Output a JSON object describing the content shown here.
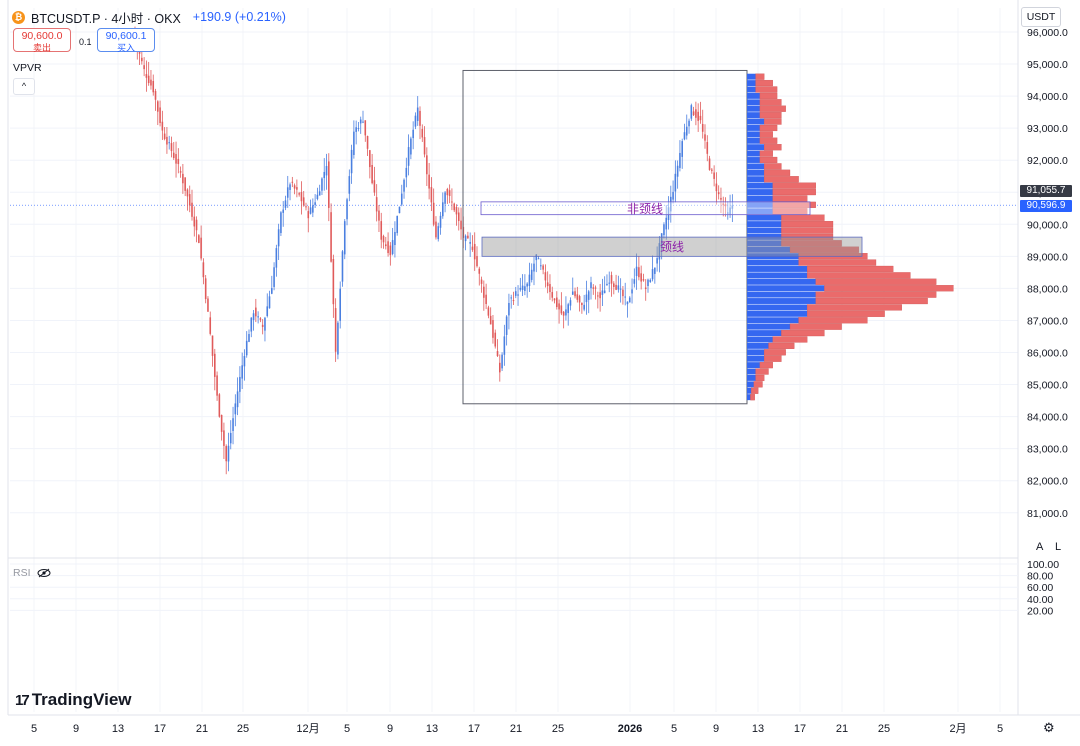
{
  "header": {
    "coin_glyph": "₿",
    "symbol": "BTCUSDT.P · 4小时 · OKX",
    "change": "+190.9 (+0.21%)"
  },
  "quote": {
    "sell_price": "90,600.0",
    "sell_label": "卖出",
    "spread": "0.1",
    "buy_price": "90,600.1",
    "buy_label": "买入"
  },
  "indicator": {
    "name": "VPVR",
    "collapse_glyph": "^"
  },
  "currency": "USDT",
  "price_tags": {
    "last": "91,055.7",
    "current": "90,596.9"
  },
  "scale_buttons": {
    "auto": "A",
    "log": "L"
  },
  "rsi_pane": {
    "name": "RSI"
  },
  "brand": {
    "mark": "17",
    "name": "TradingView"
  },
  "colors": {
    "up": "#4a7fe0",
    "down": "#e05a5a",
    "vp_up": "#3567f0",
    "vp_down": "#ea6b6b",
    "annotation": "#8e24aa"
  },
  "chart_data": {
    "type": "candlestick",
    "symbol": "BTCUSDT.P",
    "interval": "4小时",
    "exchange": "OKX",
    "y_ticks": [
      "96,000.0",
      "95,000.0",
      "94,000.0",
      "93,000.0",
      "92,000.0",
      "91,000.0",
      "90,000.0",
      "89,000.0",
      "88,000.0",
      "87,000.0",
      "86,000.0",
      "85,000.0",
      "84,000.0",
      "83,000.0",
      "82,000.0",
      "81,000.0"
    ],
    "y_values": [
      96000,
      95000,
      94000,
      93000,
      92000,
      91000,
      90000,
      89000,
      88000,
      87000,
      86000,
      85000,
      84000,
      83000,
      82000,
      81000
    ],
    "x_ticks": [
      "5",
      "9",
      "13",
      "17",
      "21",
      "25",
      "12月",
      "5",
      "9",
      "13",
      "17",
      "21",
      "25",
      "2026",
      "5",
      "9",
      "13",
      "17",
      "21",
      "25",
      "2月",
      "5"
    ],
    "rsi_ticks": [
      "100.00",
      "80.00",
      "60.00",
      "40.00",
      "20.00"
    ],
    "rsi_values": [
      100,
      80,
      60,
      40,
      20
    ],
    "path_keypoints": [
      [
        0,
        95800
      ],
      [
        4,
        94800
      ],
      [
        8,
        94200
      ],
      [
        12,
        92900
      ],
      [
        16,
        92300
      ],
      [
        20,
        91600
      ],
      [
        24,
        90600
      ],
      [
        28,
        89500
      ],
      [
        32,
        87200
      ],
      [
        36,
        84600
      ],
      [
        40,
        82600
      ],
      [
        44,
        84400
      ],
      [
        48,
        86000
      ],
      [
        52,
        87300
      ],
      [
        56,
        86800
      ],
      [
        60,
        88100
      ],
      [
        64,
        90300
      ],
      [
        68,
        91300
      ],
      [
        72,
        90900
      ],
      [
        76,
        90300
      ],
      [
        80,
        90900
      ],
      [
        84,
        91900
      ],
      [
        88,
        86000
      ],
      [
        92,
        90200
      ],
      [
        96,
        92900
      ],
      [
        100,
        93300
      ],
      [
        104,
        91300
      ],
      [
        108,
        89600
      ],
      [
        112,
        89100
      ],
      [
        116,
        90600
      ],
      [
        120,
        92300
      ],
      [
        124,
        93600
      ],
      [
        128,
        91600
      ],
      [
        132,
        89600
      ],
      [
        136,
        91100
      ],
      [
        140,
        90500
      ],
      [
        144,
        89600
      ],
      [
        148,
        89300
      ],
      [
        152,
        88100
      ],
      [
        156,
        86900
      ],
      [
        160,
        85400
      ],
      [
        164,
        87600
      ],
      [
        168,
        87900
      ],
      [
        172,
        88100
      ],
      [
        176,
        89000
      ],
      [
        180,
        88300
      ],
      [
        184,
        87600
      ],
      [
        188,
        87100
      ],
      [
        192,
        87900
      ],
      [
        196,
        87400
      ],
      [
        200,
        88100
      ],
      [
        204,
        87700
      ],
      [
        208,
        88300
      ],
      [
        212,
        88000
      ],
      [
        216,
        87500
      ],
      [
        220,
        88600
      ],
      [
        224,
        88000
      ],
      [
        228,
        88700
      ],
      [
        232,
        89900
      ],
      [
        236,
        91100
      ],
      [
        240,
        92600
      ],
      [
        244,
        93600
      ],
      [
        248,
        93200
      ],
      [
        252,
        91800
      ],
      [
        256,
        90900
      ],
      [
        260,
        90300
      ],
      [
        262,
        90600
      ]
    ],
    "range_box": {
      "high": 94800,
      "low": 84400
    },
    "annotations": [
      {
        "label": "非颈线",
        "top": 90700,
        "bottom": 90300
      },
      {
        "label": "颈线",
        "top": 89600,
        "bottom": 89000
      }
    ],
    "volume_profile": [
      {
        "p": 94600,
        "up": 1,
        "down": 1
      },
      {
        "p": 94400,
        "up": 1,
        "down": 2
      },
      {
        "p": 94200,
        "up": 1,
        "down": 2.5
      },
      {
        "p": 94000,
        "up": 1.5,
        "down": 2
      },
      {
        "p": 93800,
        "up": 1.5,
        "down": 2.5
      },
      {
        "p": 93600,
        "up": 1.5,
        "down": 3
      },
      {
        "p": 93400,
        "up": 1.5,
        "down": 2.5
      },
      {
        "p": 93200,
        "up": 2,
        "down": 2
      },
      {
        "p": 93000,
        "up": 1.5,
        "down": 2
      },
      {
        "p": 92800,
        "up": 1.5,
        "down": 1.5
      },
      {
        "p": 92600,
        "up": 1.5,
        "down": 2
      },
      {
        "p": 92400,
        "up": 2,
        "down": 2
      },
      {
        "p": 92200,
        "up": 1.5,
        "down": 1.5
      },
      {
        "p": 92000,
        "up": 1.5,
        "down": 2
      },
      {
        "p": 91800,
        "up": 2,
        "down": 2
      },
      {
        "p": 91600,
        "up": 2,
        "down": 3
      },
      {
        "p": 91400,
        "up": 2,
        "down": 4
      },
      {
        "p": 91200,
        "up": 3,
        "down": 5
      },
      {
        "p": 91000,
        "up": 3,
        "down": 5
      },
      {
        "p": 90800,
        "up": 3,
        "down": 4
      },
      {
        "p": 90600,
        "up": 3,
        "down": 5
      },
      {
        "p": 90400,
        "up": 3,
        "down": 4
      },
      {
        "p": 90200,
        "up": 4,
        "down": 5
      },
      {
        "p": 90000,
        "up": 4,
        "down": 6
      },
      {
        "p": 89800,
        "up": 4,
        "down": 6
      },
      {
        "p": 89600,
        "up": 4,
        "down": 6
      },
      {
        "p": 89400,
        "up": 4,
        "down": 7
      },
      {
        "p": 89200,
        "up": 5,
        "down": 8
      },
      {
        "p": 89000,
        "up": 6,
        "down": 8
      },
      {
        "p": 88800,
        "up": 6,
        "down": 9
      },
      {
        "p": 88600,
        "up": 7,
        "down": 10
      },
      {
        "p": 88400,
        "up": 7,
        "down": 12
      },
      {
        "p": 88200,
        "up": 8,
        "down": 14
      },
      {
        "p": 88000,
        "up": 9,
        "down": 15
      },
      {
        "p": 87800,
        "up": 8,
        "down": 14
      },
      {
        "p": 87600,
        "up": 8,
        "down": 13
      },
      {
        "p": 87400,
        "up": 7,
        "down": 11
      },
      {
        "p": 87200,
        "up": 7,
        "down": 9
      },
      {
        "p": 87000,
        "up": 6,
        "down": 8
      },
      {
        "p": 86800,
        "up": 5,
        "down": 6
      },
      {
        "p": 86600,
        "up": 4,
        "down": 5
      },
      {
        "p": 86400,
        "up": 3,
        "down": 4
      },
      {
        "p": 86200,
        "up": 2.5,
        "down": 3
      },
      {
        "p": 86000,
        "up": 2,
        "down": 2.5
      },
      {
        "p": 85800,
        "up": 2,
        "down": 2
      },
      {
        "p": 85600,
        "up": 1.5,
        "down": 1.5
      },
      {
        "p": 85400,
        "up": 1,
        "down": 1.5
      },
      {
        "p": 85200,
        "up": 1,
        "down": 1
      },
      {
        "p": 85000,
        "up": 0.8,
        "down": 1
      },
      {
        "p": 84800,
        "up": 0.5,
        "down": 0.8
      },
      {
        "p": 84600,
        "up": 0.4,
        "down": 0.5
      }
    ]
  }
}
